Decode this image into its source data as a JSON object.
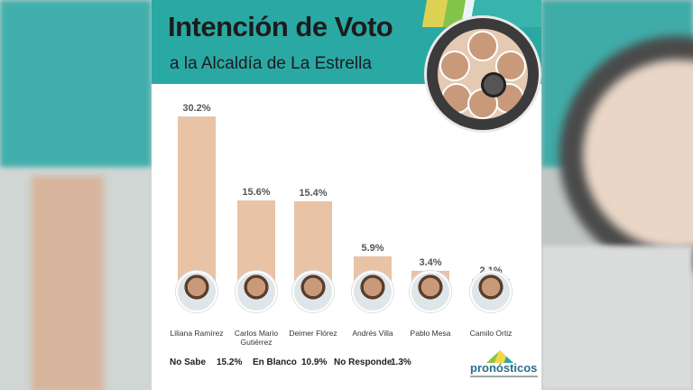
{
  "header": {
    "title": "Intención de Voto",
    "subtitle": "a la Alcaldía de La Estrella"
  },
  "chart_data": {
    "type": "bar",
    "categories": [
      "Liliana Ramírez",
      "Carlos Mario Gutiérrez",
      "Deimer Flórez",
      "Andrés Villa",
      "Pablo Mesa",
      "Camilo Ortiz"
    ],
    "values": [
      30.2,
      15.6,
      15.4,
      5.9,
      3.4,
      2.1
    ],
    "value_labels": [
      "30.2%",
      "15.6%",
      "15.4%",
      "5.9%",
      "3.4%",
      "2.1%"
    ],
    "ylim": [
      0,
      32
    ],
    "grid": false,
    "bar_color": "#e8c3a6"
  },
  "legend": {
    "items": [
      {
        "label": "No Sabe",
        "value": "15.2%"
      },
      {
        "label": "En Blanco",
        "value": "10.9%"
      },
      {
        "label": "No Responde",
        "value": "1.3%"
      }
    ]
  },
  "logo": {
    "text": "pronósticos"
  },
  "colors": {
    "accent": "#2aa8a4",
    "bar": "#e8c3a6"
  }
}
